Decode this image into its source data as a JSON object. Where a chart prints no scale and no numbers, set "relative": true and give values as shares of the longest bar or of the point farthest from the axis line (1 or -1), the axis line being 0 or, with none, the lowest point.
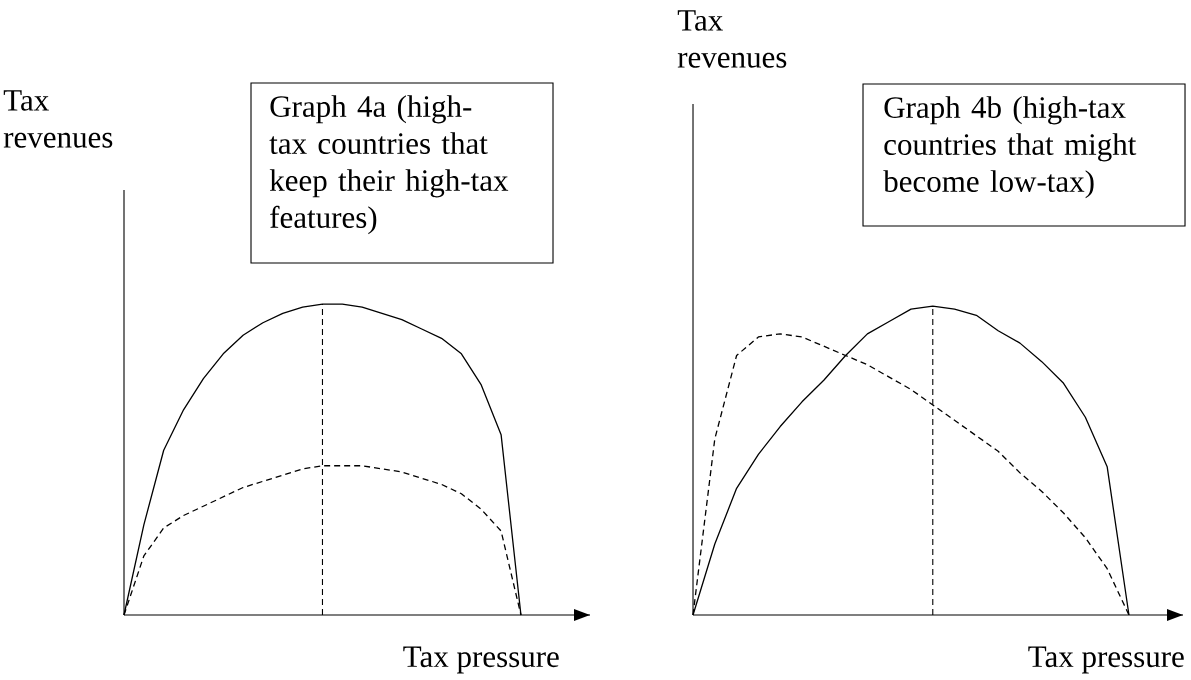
{
  "chart_data": [
    {
      "type": "line",
      "relative": true,
      "xlabel": "Tax pressure",
      "ylabel": "Tax revenues",
      "annotations": [
        "Graph 4a (high-tax countries that keep their high-tax features)"
      ],
      "marker": "none",
      "categories": [
        null,
        null,
        null,
        null,
        null,
        null,
        null,
        null,
        null,
        null,
        null,
        null,
        null,
        null,
        null,
        null,
        null,
        null,
        null,
        null,
        null
      ],
      "series": [
        {
          "color": "#000000",
          "line_style": "solid",
          "values": [
            0,
            0.29,
            0.53,
            0.66,
            0.76,
            0.84,
            0.9,
            0.94,
            0.97,
            0.99,
            1,
            1,
            0.99,
            0.97,
            0.95,
            0.92,
            0.89,
            0.84,
            0.74,
            0.58,
            0
          ]
        },
        {
          "color": "#000000",
          "line_style": "dashed",
          "values": [
            0,
            0.19,
            0.28,
            0.32,
            0.35,
            0.38,
            0.41,
            0.43,
            0.45,
            0.47,
            0.48,
            0.48,
            0.48,
            0.47,
            0.46,
            0.44,
            0.42,
            0.39,
            0.34,
            0.27,
            0
          ]
        }
      ]
    },
    {
      "type": "line",
      "relative": true,
      "xlabel": "Tax pressure",
      "ylabel": "Tax revenues",
      "annotations": [
        "Graph 4b (high-tax countries that might become low-tax)"
      ],
      "marker": "none",
      "categories": [
        null,
        null,
        null,
        null,
        null,
        null,
        null,
        null,
        null,
        null,
        null,
        null,
        null,
        null,
        null,
        null,
        null,
        null,
        null,
        null,
        null
      ],
      "series": [
        {
          "color": "#000000",
          "line_style": "solid",
          "values": [
            0,
            0.23,
            0.41,
            0.52,
            0.61,
            0.69,
            0.76,
            0.84,
            0.91,
            0.95,
            0.99,
            1,
            0.99,
            0.97,
            0.92,
            0.88,
            0.82,
            0.75,
            0.64,
            0.48,
            0
          ]
        },
        {
          "color": "#000000",
          "line_style": "dashed",
          "values": [
            0,
            0.57,
            0.84,
            0.9,
            0.91,
            0.9,
            0.87,
            0.84,
            0.81,
            0.77,
            0.73,
            0.68,
            0.63,
            0.58,
            0.53,
            0.46,
            0.4,
            0.33,
            0.25,
            0.15,
            0
          ]
        }
      ]
    }
  ]
}
